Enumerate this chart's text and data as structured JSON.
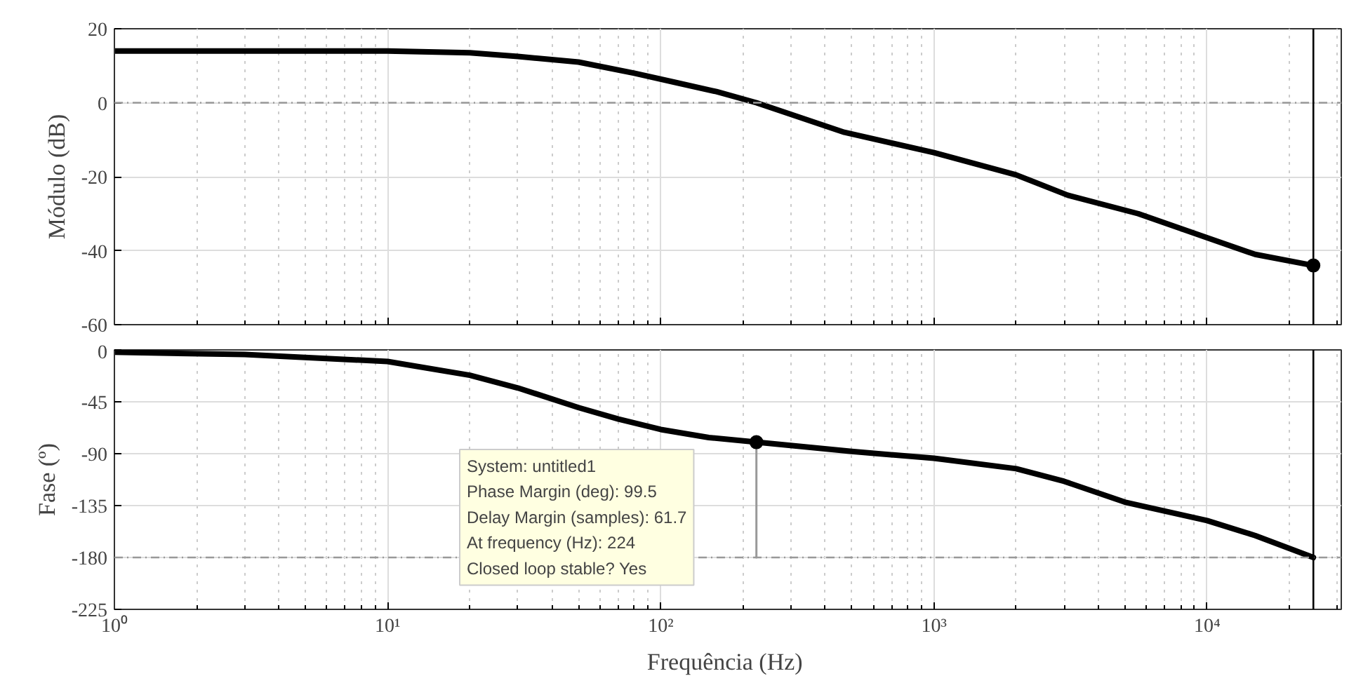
{
  "chart_data": [
    {
      "type": "line",
      "ylabel": "Módulo (dB)",
      "log": "x",
      "grid": true,
      "tick_labels": "y",
      "xlim": [
        1,
        31000
      ],
      "xticks": [
        {
          "value": 1,
          "label": null
        },
        {
          "value": 10,
          "label": null
        },
        {
          "value": 100,
          "label": null
        },
        {
          "value": 1000,
          "label": null
        },
        {
          "value": 10000,
          "label": null
        }
      ],
      "ylim": [
        -60,
        20
      ],
      "yticks": [
        -60,
        -40,
        -20,
        0,
        20
      ],
      "series": [
        {
          "color": "#000000",
          "x": [
            1,
            3,
            10,
            20,
            30,
            50,
            80,
            113,
            160,
            224,
            470,
            1000,
            2000,
            3090,
            5600,
            10000,
            15000,
            24500
          ],
          "values": [
            14,
            14,
            14,
            13.5,
            12.5,
            11,
            8,
            5.5,
            3,
            0,
            -8,
            -13.5,
            -19.5,
            -25,
            -30,
            -36.5,
            -41,
            -44
          ]
        },
        {
          "type": "scatter",
          "marker": "circle",
          "color": "#000000",
          "x": [
            24500
          ],
          "values": [
            -44
          ]
        }
      ],
      "ref_lines": [
        {
          "axis": "y",
          "value": 0,
          "color": "#999999",
          "line_style": "dashed"
        },
        {
          "axis": "x",
          "value": 24500,
          "color": "#000000",
          "line_style": "solid"
        }
      ]
    },
    {
      "type": "line",
      "ylabel": "Fase (º)",
      "xlabel": "Frequência  (Hz)",
      "log": "x",
      "grid": true,
      "xlim": [
        1,
        31000
      ],
      "xticks": [
        {
          "value": 1,
          "label": "10⁰"
        },
        {
          "value": 10,
          "label": "10¹"
        },
        {
          "value": 100,
          "label": "10²"
        },
        {
          "value": 1000,
          "label": "10³"
        },
        {
          "value": 10000,
          "label": "10⁴"
        }
      ],
      "ylim": [
        -225,
        0
      ],
      "yticks": [
        -225,
        -180,
        -135,
        -90,
        -45,
        0
      ],
      "series": [
        {
          "color": "#000000",
          "x": [
            1,
            3,
            10,
            20,
            30,
            50,
            70,
            100,
            150,
            224,
            500,
            1000,
            2000,
            3000,
            5000,
            10000,
            15000,
            24500
          ],
          "values": [
            -2,
            -4,
            -10,
            -22,
            -33,
            -50,
            -60,
            -69,
            -76,
            -80,
            -88,
            -94,
            -103,
            -114,
            -132,
            -148,
            -161,
            -180
          ]
        },
        {
          "color": "#999999",
          "x": [
            224,
            224
          ],
          "values": [
            -80,
            -180
          ]
        },
        {
          "type": "scatter",
          "marker": "circle",
          "color": "#000000",
          "x": [
            224
          ],
          "values": [
            -80
          ]
        }
      ],
      "ref_lines": [
        {
          "axis": "y",
          "value": -180,
          "color": "#999999",
          "line_style": "dashed"
        },
        {
          "axis": "x",
          "value": 24500,
          "color": "#000000",
          "line_style": "solid"
        }
      ],
      "annotations": [
        "System: untitled1\nPhase Margin (deg): 99.5\nDelay Margin (samples): 61.7\nAt frequency (Hz): 224\nClosed loop stable? Yes"
      ]
    }
  ]
}
